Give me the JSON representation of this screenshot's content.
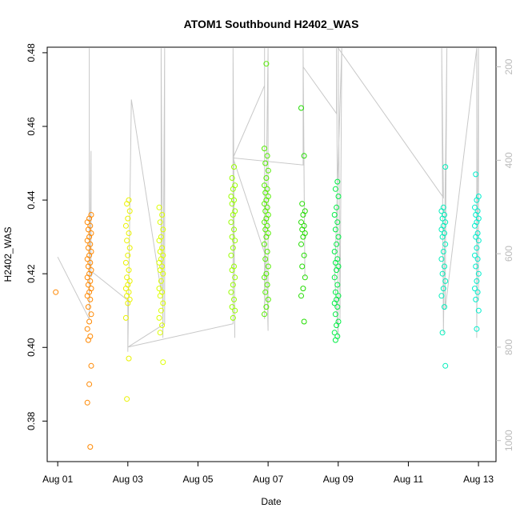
{
  "chart_data": {
    "type": "scatter",
    "title": "ATOM1 Southbound H2402_WAS",
    "xlabel": "Date",
    "ylabel": "H2402_WAS",
    "xlim": [
      -0.3,
      12.5
    ],
    "ylim": [
      0.369,
      0.4815
    ],
    "x_ticks": [
      {
        "value": 0,
        "label": "Aug 01"
      },
      {
        "value": 2,
        "label": "Aug 03"
      },
      {
        "value": 4,
        "label": "Aug 05"
      },
      {
        "value": 6,
        "label": "Aug 07"
      },
      {
        "value": 8,
        "label": "Aug 09"
      },
      {
        "value": 10,
        "label": "Aug 11"
      },
      {
        "value": 12,
        "label": "Aug 13"
      }
    ],
    "y_ticks": [
      0.38,
      0.4,
      0.42,
      0.44,
      0.46,
      0.48
    ],
    "y_tick_labels": [
      "0.38",
      "0.40",
      "0.42",
      "0.44",
      "0.46",
      "0.48"
    ],
    "y2_lim": [
      1045,
      158
    ],
    "y2_ticks": [
      200,
      400,
      600,
      800,
      1000
    ],
    "y2_tick_labels": [
      "200",
      "400",
      "600",
      "800",
      "1000"
    ],
    "colors": {
      "axis": "#000000",
      "secondary_axis": "#bbbbbb",
      "gray_series": "#c8c8c8"
    },
    "point_clusters": [
      {
        "x": 0.0,
        "values": [
          0.415
        ],
        "color": "#ff8800"
      },
      {
        "x": 0.9,
        "values": [
          0.373,
          0.385,
          0.39,
          0.395,
          0.402,
          0.403,
          0.405,
          0.407,
          0.409,
          0.411,
          0.413,
          0.414,
          0.415,
          0.416,
          0.417,
          0.418,
          0.419,
          0.42,
          0.421,
          0.422,
          0.423,
          0.424,
          0.425,
          0.426,
          0.427,
          0.428,
          0.429,
          0.43,
          0.431,
          0.432,
          0.433,
          0.434,
          0.435,
          0.436
        ],
        "color": "#ff8800"
      },
      {
        "x": 2.0,
        "values": [
          0.386,
          0.397,
          0.408,
          0.412,
          0.413,
          0.414,
          0.415,
          0.416,
          0.417,
          0.418,
          0.419,
          0.421,
          0.423,
          0.425,
          0.427,
          0.429,
          0.431,
          0.433,
          0.435,
          0.437,
          0.439,
          0.44
        ],
        "color": "#eaf200"
      },
      {
        "x": 2.95,
        "values": [
          0.396,
          0.404,
          0.406,
          0.408,
          0.41,
          0.412,
          0.414,
          0.415,
          0.416,
          0.418,
          0.42,
          0.421,
          0.422,
          0.423,
          0.424,
          0.425,
          0.426,
          0.427,
          0.429,
          0.43,
          0.432,
          0.434,
          0.436,
          0.438
        ],
        "color": "#ddff00"
      },
      {
        "x": 5.0,
        "values": [
          0.408,
          0.41,
          0.411,
          0.413,
          0.415,
          0.417,
          0.419,
          0.421,
          0.422,
          0.425,
          0.427,
          0.429,
          0.43,
          0.432,
          0.434,
          0.436,
          0.437,
          0.439,
          0.44,
          0.441,
          0.443,
          0.444,
          0.446,
          0.449
        ],
        "color": "#99ff00"
      },
      {
        "x": 5.95,
        "values": [
          0.409,
          0.411,
          0.413,
          0.415,
          0.417,
          0.419,
          0.42,
          0.422,
          0.424,
          0.426,
          0.428,
          0.43,
          0.431,
          0.432,
          0.433,
          0.434,
          0.435,
          0.436,
          0.437,
          0.438,
          0.439,
          0.44,
          0.441,
          0.442,
          0.443,
          0.444,
          0.446,
          0.448,
          0.45,
          0.452,
          0.454,
          0.477
        ],
        "color": "#55ee00"
      },
      {
        "x": 7.0,
        "values": [
          0.407,
          0.414,
          0.416,
          0.419,
          0.422,
          0.425,
          0.428,
          0.43,
          0.431,
          0.432,
          0.433,
          0.434,
          0.436,
          0.437,
          0.439,
          0.452,
          0.465
        ],
        "color": "#22dd00"
      },
      {
        "x": 7.95,
        "values": [
          0.402,
          0.403,
          0.404,
          0.406,
          0.407,
          0.409,
          0.411,
          0.412,
          0.413,
          0.414,
          0.415,
          0.417,
          0.419,
          0.421,
          0.422,
          0.423,
          0.424,
          0.426,
          0.428,
          0.43,
          0.432,
          0.434,
          0.436,
          0.438,
          0.441,
          0.443,
          0.445
        ],
        "color": "#00ee44"
      },
      {
        "x": 11.0,
        "values": [
          0.395,
          0.404,
          0.411,
          0.414,
          0.416,
          0.418,
          0.42,
          0.422,
          0.424,
          0.426,
          0.428,
          0.43,
          0.431,
          0.432,
          0.433,
          0.434,
          0.435,
          0.436,
          0.437,
          0.438,
          0.449
        ],
        "color": "#00eebb"
      },
      {
        "x": 11.95,
        "values": [
          0.405,
          0.41,
          0.413,
          0.415,
          0.416,
          0.418,
          0.42,
          0.422,
          0.424,
          0.425,
          0.427,
          0.429,
          0.43,
          0.431,
          0.433,
          0.434,
          0.435,
          0.436,
          0.437,
          0.438,
          0.44,
          0.441,
          0.447
        ],
        "color": "#00eecc"
      }
    ],
    "gray_trace": [
      {
        "x": 0.0,
        "y2": 607
      },
      {
        "x": 0.9,
        "y2": 740
      },
      {
        "x": 0.9,
        "y2": 160
      },
      {
        "x": 0.9,
        "y2": 740
      },
      {
        "x": 0.95,
        "y2": 380
      },
      {
        "x": 0.95,
        "y2": 650
      },
      {
        "x": 1.0,
        "y2": 640
      },
      {
        "x": 2.0,
        "y2": 700
      },
      {
        "x": 2.0,
        "y2": 810
      },
      {
        "x": 2.1,
        "y2": 270
      },
      {
        "x": 2.95,
        "y2": 680
      },
      {
        "x": 2.95,
        "y2": 160
      },
      {
        "x": 3.0,
        "y2": 780
      },
      {
        "x": 3.05,
        "y2": 160
      },
      {
        "x": 3.05,
        "y2": 750
      },
      {
        "x": 2.0,
        "y2": 800
      },
      {
        "x": 5.0,
        "y2": 750
      },
      {
        "x": 5.0,
        "y2": 160
      },
      {
        "x": 5.05,
        "y2": 780
      },
      {
        "x": 5.0,
        "y2": 395
      },
      {
        "x": 5.9,
        "y2": 240
      },
      {
        "x": 5.9,
        "y2": 160
      },
      {
        "x": 5.9,
        "y2": 740
      },
      {
        "x": 6.0,
        "y2": 160
      },
      {
        "x": 6.0,
        "y2": 765
      },
      {
        "x": 5.95,
        "y2": 610
      },
      {
        "x": 5.0,
        "y2": 395
      },
      {
        "x": 7.0,
        "y2": 410
      },
      {
        "x": 7.0,
        "y2": 160
      },
      {
        "x": 7.05,
        "y2": 650
      },
      {
        "x": 7.0,
        "y2": 200
      },
      {
        "x": 7.95,
        "y2": 300
      },
      {
        "x": 7.95,
        "y2": 160
      },
      {
        "x": 8.0,
        "y2": 780
      },
      {
        "x": 7.9,
        "y2": 650
      },
      {
        "x": 8.1,
        "y2": 160
      },
      {
        "x": 8.05,
        "y2": 740
      },
      {
        "x": 8.0,
        "y2": 160
      },
      {
        "x": 11.0,
        "y2": 480
      },
      {
        "x": 10.95,
        "y2": 160
      },
      {
        "x": 11.0,
        "y2": 770
      },
      {
        "x": 11.1,
        "y2": 160
      },
      {
        "x": 11.05,
        "y2": 720
      },
      {
        "x": 11.95,
        "y2": 160
      },
      {
        "x": 11.95,
        "y2": 780
      },
      {
        "x": 12.0,
        "y2": 160
      },
      {
        "x": 12.0,
        "y2": 700
      }
    ]
  }
}
